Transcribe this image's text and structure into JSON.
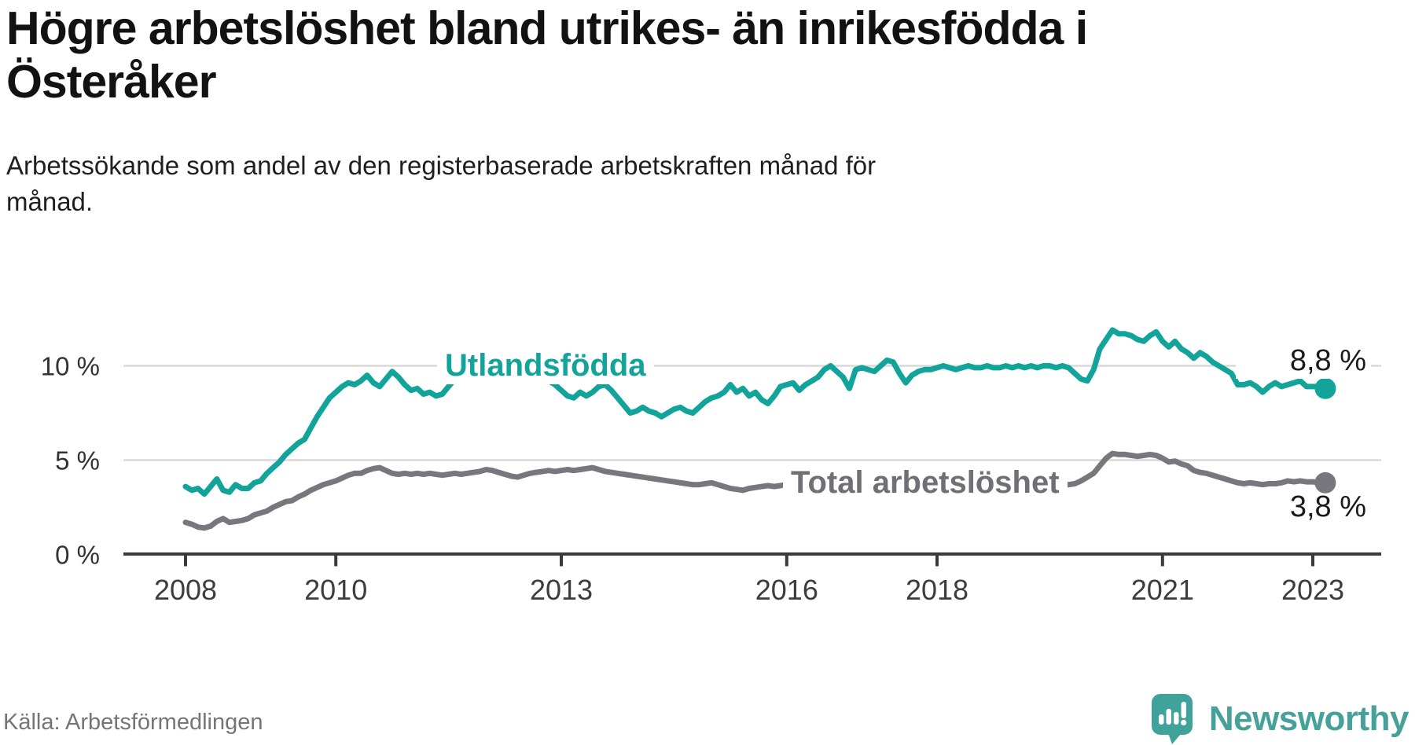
{
  "header": {
    "title_lines": [
      "Högre arbetslöshet bland utrikes- än inrikesfödda i",
      "Österåker"
    ],
    "subtitle_lines": [
      "Arbetssökande som andel av den registerbaserade arbetskraften månad för",
      "månad."
    ]
  },
  "footer": {
    "source": "Källa: Arbetsförmedlingen",
    "brand": "Newsworthy"
  },
  "colors": {
    "teal_line": "#12a39a",
    "gray_line": "#77777d",
    "grid": "#d9d9d9",
    "axis": "#3a3a3a",
    "tick_text": "#3d3d3d",
    "label_text": "#1a1a1a",
    "logo_teal": "#3fa39c"
  },
  "chart_data": {
    "type": "line",
    "unit": "%",
    "frequency": "monthly",
    "x_start": "2008-01",
    "x_end": "2023-03",
    "x_tick_years": [
      2008,
      2010,
      2013,
      2016,
      2018,
      2021,
      2023
    ],
    "y_ticks": [
      {
        "value": 10,
        "label": "10 %"
      },
      {
        "value": 5,
        "label": "5 %"
      },
      {
        "value": 0,
        "label": "0 %"
      }
    ],
    "ylim": [
      0,
      12.5
    ],
    "grid": "horizontal",
    "legend_position": "inline-labels",
    "series": [
      {
        "name": "Utlandsfödda",
        "color": "#12a39a",
        "end_label": "8,8 %",
        "end_value": 8.8,
        "values": [
          3.6,
          3.4,
          3.5,
          3.2,
          3.6,
          4.0,
          3.4,
          3.3,
          3.7,
          3.5,
          3.5,
          3.8,
          3.9,
          4.3,
          4.6,
          4.9,
          5.3,
          5.6,
          5.9,
          6.1,
          6.7,
          7.3,
          7.8,
          8.3,
          8.6,
          8.9,
          9.1,
          9.0,
          9.2,
          9.5,
          9.1,
          8.9,
          9.3,
          9.7,
          9.4,
          9.0,
          8.7,
          8.8,
          8.5,
          8.6,
          8.4,
          8.5,
          8.9,
          9.3,
          9.6,
          9.8,
          9.9,
          10.0,
          9.9,
          10.0,
          9.8,
          9.9,
          9.7,
          9.8,
          9.6,
          9.5,
          9.6,
          9.4,
          9.2,
          9.0,
          8.7,
          8.4,
          8.3,
          8.6,
          8.4,
          8.6,
          8.9,
          9.0,
          8.7,
          8.3,
          7.9,
          7.5,
          7.6,
          7.8,
          7.6,
          7.5,
          7.3,
          7.5,
          7.7,
          7.8,
          7.6,
          7.5,
          7.8,
          8.1,
          8.3,
          8.4,
          8.6,
          9.0,
          8.6,
          8.8,
          8.4,
          8.6,
          8.2,
          8.0,
          8.4,
          8.9,
          9.0,
          9.1,
          8.7,
          9.0,
          9.2,
          9.4,
          9.8,
          10.0,
          9.7,
          9.4,
          8.8,
          9.8,
          9.9,
          9.8,
          9.7,
          10.0,
          10.3,
          10.2,
          9.6,
          9.1,
          9.5,
          9.7,
          9.8,
          9.8,
          9.9,
          10.0,
          9.9,
          9.8,
          9.9,
          10.0,
          9.9,
          9.9,
          10.0,
          9.9,
          9.9,
          10.0,
          9.9,
          10.0,
          9.9,
          10.0,
          9.9,
          10.0,
          10.0,
          9.9,
          10.0,
          9.9,
          9.6,
          9.3,
          9.2,
          9.8,
          10.9,
          11.4,
          11.9,
          11.7,
          11.7,
          11.6,
          11.4,
          11.3,
          11.6,
          11.8,
          11.3,
          11.0,
          11.3,
          10.9,
          10.7,
          10.4,
          10.7,
          10.5,
          10.2,
          10.0,
          9.8,
          9.6,
          9.0,
          9.0,
          9.1,
          8.9,
          8.6,
          8.9,
          9.1,
          8.9,
          9.0,
          9.1,
          9.2,
          8.9,
          8.9,
          8.9,
          8.8
        ]
      },
      {
        "name": "Total arbetslöshet",
        "color": "#77777d",
        "end_label": "3,8 %",
        "end_value": 3.8,
        "values": [
          1.7,
          1.6,
          1.45,
          1.4,
          1.5,
          1.75,
          1.9,
          1.7,
          1.75,
          1.8,
          1.9,
          2.1,
          2.2,
          2.3,
          2.5,
          2.65,
          2.8,
          2.85,
          3.05,
          3.2,
          3.4,
          3.55,
          3.7,
          3.8,
          3.9,
          4.05,
          4.2,
          4.3,
          4.3,
          4.45,
          4.55,
          4.6,
          4.45,
          4.3,
          4.25,
          4.3,
          4.25,
          4.3,
          4.25,
          4.3,
          4.25,
          4.2,
          4.25,
          4.3,
          4.25,
          4.3,
          4.35,
          4.4,
          4.5,
          4.45,
          4.35,
          4.25,
          4.15,
          4.1,
          4.2,
          4.3,
          4.35,
          4.4,
          4.45,
          4.4,
          4.45,
          4.5,
          4.45,
          4.5,
          4.55,
          4.6,
          4.5,
          4.4,
          4.35,
          4.3,
          4.25,
          4.2,
          4.15,
          4.1,
          4.05,
          4.0,
          3.95,
          3.9,
          3.85,
          3.8,
          3.75,
          3.7,
          3.7,
          3.75,
          3.8,
          3.7,
          3.6,
          3.5,
          3.45,
          3.4,
          3.5,
          3.55,
          3.6,
          3.65,
          3.6,
          3.65,
          3.7,
          3.65,
          3.6,
          3.65,
          3.7,
          3.65,
          3.6,
          3.65,
          3.7,
          3.65,
          3.6,
          3.65,
          3.7,
          3.65,
          3.6,
          3.65,
          3.7,
          3.65,
          3.6,
          3.65,
          3.7,
          3.65,
          3.65,
          3.7,
          3.65,
          3.6,
          3.65,
          3.7,
          3.65,
          3.6,
          3.65,
          3.7,
          3.65,
          3.6,
          3.65,
          3.7,
          3.7,
          3.65,
          3.7,
          3.65,
          3.7,
          3.65,
          3.7,
          3.65,
          3.7,
          3.7,
          3.75,
          3.9,
          4.1,
          4.3,
          4.7,
          5.1,
          5.35,
          5.3,
          5.3,
          5.25,
          5.2,
          5.25,
          5.3,
          5.25,
          5.1,
          4.9,
          4.95,
          4.8,
          4.7,
          4.45,
          4.35,
          4.3,
          4.2,
          4.1,
          4.0,
          3.9,
          3.8,
          3.75,
          3.8,
          3.75,
          3.7,
          3.75,
          3.75,
          3.8,
          3.9,
          3.85,
          3.9,
          3.85,
          3.85,
          3.8,
          3.8
        ]
      }
    ]
  }
}
